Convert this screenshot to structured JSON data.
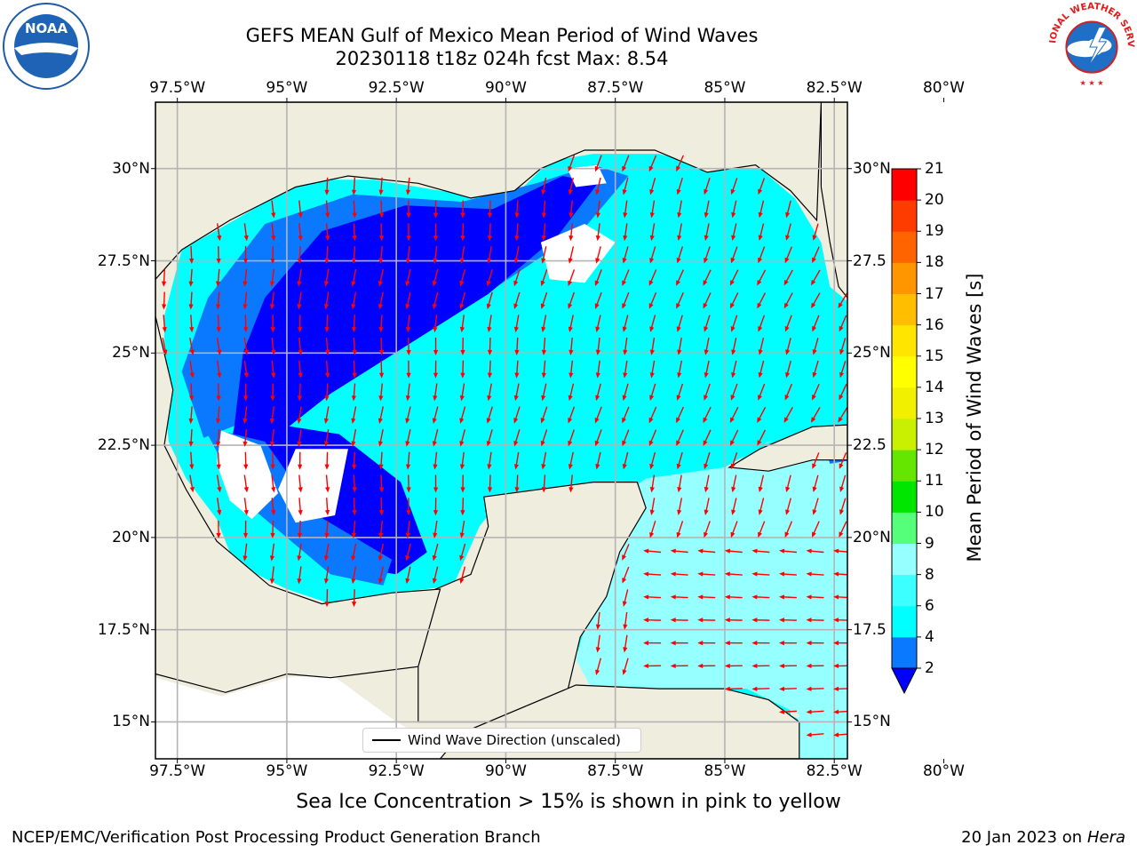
{
  "title": {
    "line1": "GEFS MEAN Gulf of Mexico Mean Period of Wind Waves",
    "line2": "20230118 t18z 024h fcst   Max: 8.54"
  },
  "map": {
    "lon_range": [
      -98.0,
      -82.2
    ],
    "lat_range": [
      14.0,
      31.8
    ],
    "lon_ticks": [
      {
        "value": -97.5,
        "label": "97.5°W"
      },
      {
        "value": -95.0,
        "label": "95°W"
      },
      {
        "value": -92.5,
        "label": "92.5°W"
      },
      {
        "value": -90.0,
        "label": "90°W"
      },
      {
        "value": -87.5,
        "label": "87.5°W"
      },
      {
        "value": -85.0,
        "label": "85°W"
      },
      {
        "value": -82.5,
        "label": "82.5°W"
      },
      {
        "value": -80.0,
        "label": "80°W"
      }
    ],
    "lat_ticks_left": [
      {
        "value": 30.0,
        "label": "30°N"
      },
      {
        "value": 27.5,
        "label": "27.5°N"
      },
      {
        "value": 25.0,
        "label": "25°N"
      },
      {
        "value": 22.5,
        "label": "22.5°N"
      },
      {
        "value": 20.0,
        "label": "20°N"
      },
      {
        "value": 17.5,
        "label": "17.5°N"
      },
      {
        "value": 15.0,
        "label": "15°N"
      }
    ],
    "lat_ticks_right": [
      {
        "value": 30.0,
        "label": "30°N"
      },
      {
        "value": 27.5,
        "label": "27.5"
      },
      {
        "value": 25.0,
        "label": "25°N"
      },
      {
        "value": 22.5,
        "label": "22.5"
      },
      {
        "value": 20.0,
        "label": "20°N"
      },
      {
        "value": 17.5,
        "label": "17.5"
      },
      {
        "value": 15.0,
        "label": "15°N"
      }
    ],
    "grid": true,
    "colors": {
      "land": "#efedde",
      "no_data": "#ffffff",
      "arrow": "#ff0000",
      "grid": "#b4b4b4"
    },
    "legend_label": "Wind Wave Direction (unscaled)"
  },
  "colorbar": {
    "title": "Mean Period of Wind Waves [s]",
    "tick_labels": [
      "2",
      "4",
      "6",
      "8",
      "9",
      "10",
      "11",
      "12",
      "13",
      "14",
      "15",
      "16",
      "17",
      "18",
      "19",
      "20",
      "21"
    ],
    "band_colors": [
      "#0a78ff",
      "#00ffff",
      "#3cffff",
      "#96ffff",
      "#55ff7a",
      "#00e600",
      "#64e600",
      "#c8f000",
      "#f0f000",
      "#ffff00",
      "#ffe600",
      "#ffbe00",
      "#ff9600",
      "#ff6400",
      "#ff3c00",
      "#ff0000"
    ],
    "extend_color": "#0000ff"
  },
  "sea_ice_note": "Sea Ice Concentration > 15% is shown in pink to yellow",
  "footer": {
    "left": "NCEP/EMC/Verification Post Processing Product Generation Branch",
    "right_prefix": "20 Jan 2023 on ",
    "right_machine": "Hera"
  },
  "logos": {
    "left_text": "NOAA",
    "right_text": "NATIONAL WEATHER SERVICE"
  }
}
